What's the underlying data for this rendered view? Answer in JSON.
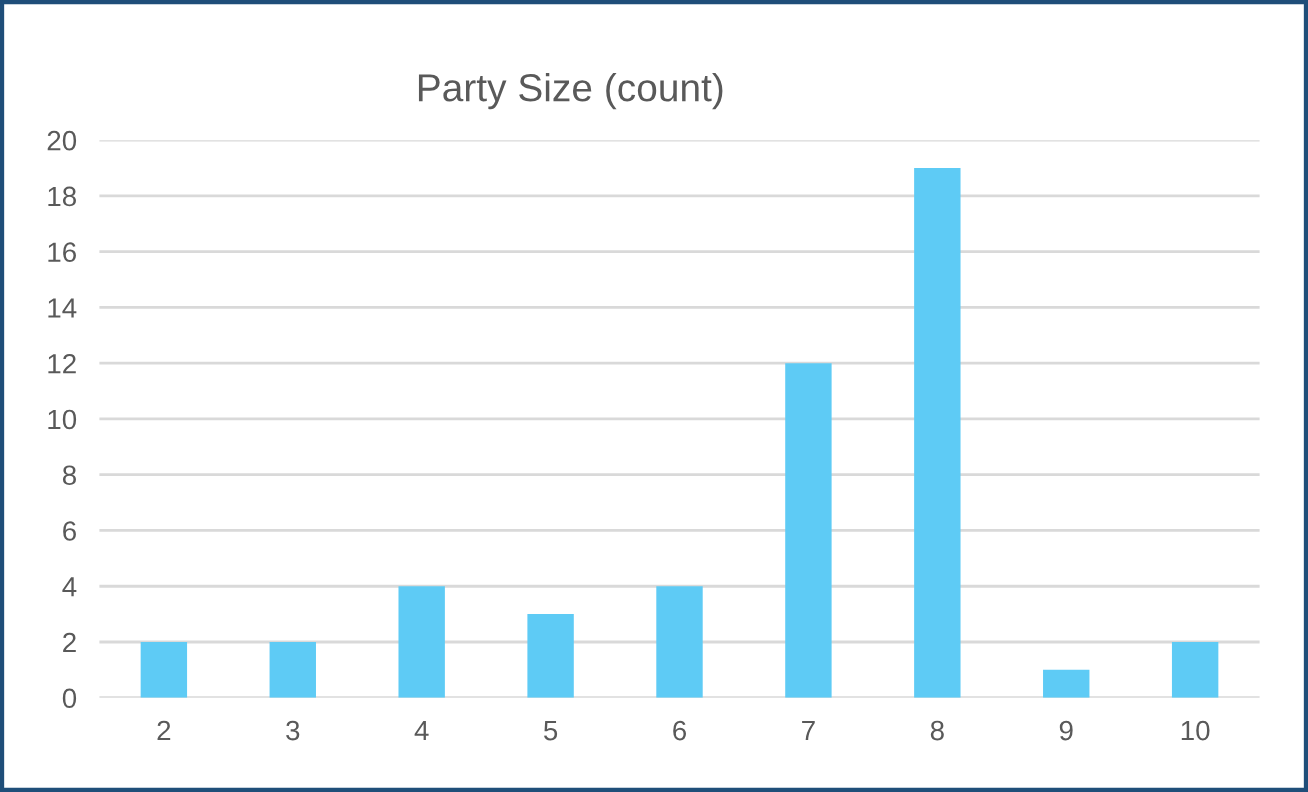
{
  "chart_data": {
    "type": "bar",
    "title": "Party Size (count)",
    "categories": [
      "2",
      "3",
      "4",
      "5",
      "6",
      "7",
      "8",
      "9",
      "10"
    ],
    "values": [
      2,
      2,
      4,
      3,
      4,
      12,
      19,
      1,
      2
    ],
    "color": "#5ecbf5",
    "ylim": [
      0,
      20
    ],
    "yticks": [
      0,
      2,
      4,
      6,
      8,
      10,
      12,
      14,
      16,
      18,
      20
    ],
    "grid": "y"
  }
}
